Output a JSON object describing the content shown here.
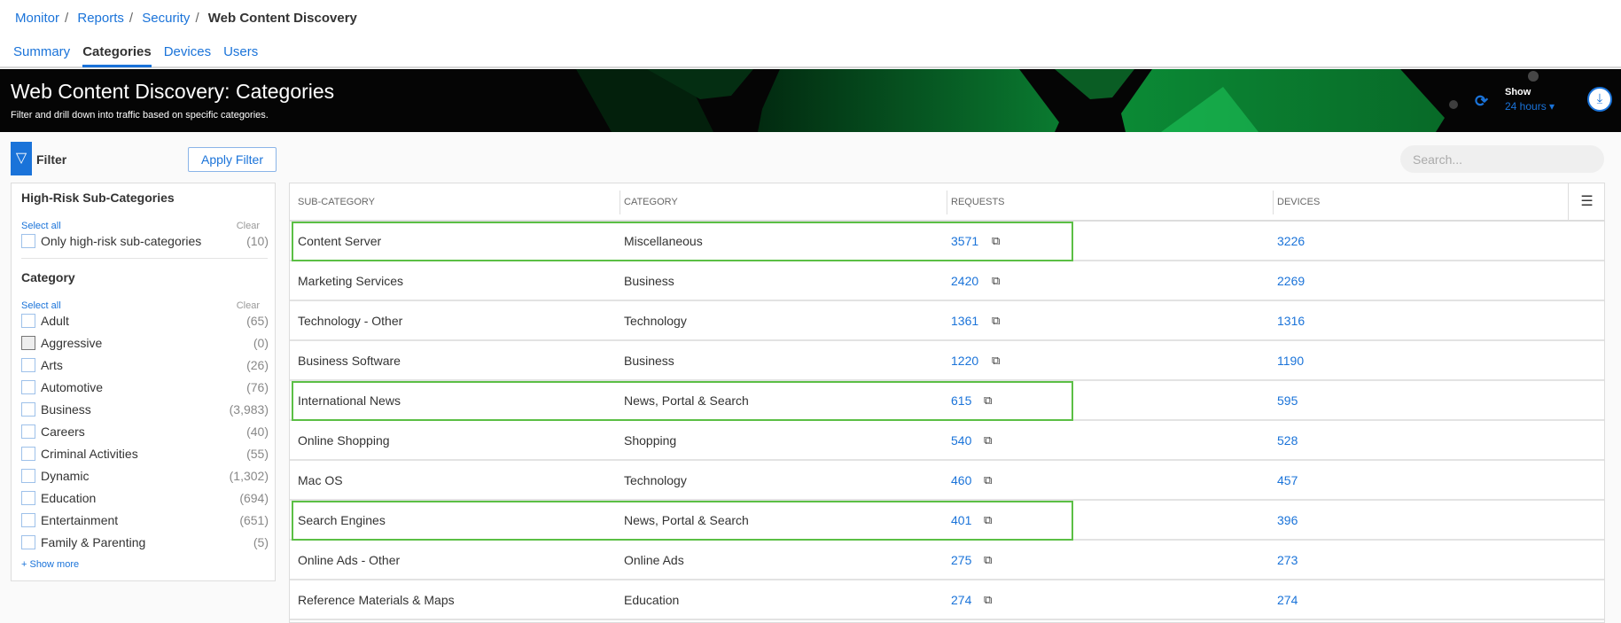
{
  "breadcrumb": {
    "items": [
      "Monitor",
      "Reports",
      "Security"
    ],
    "current": "Web Content Discovery"
  },
  "tabs": [
    "Summary",
    "Categories",
    "Devices",
    "Users"
  ],
  "active_tab": "Categories",
  "banner": {
    "title": "Web Content Discovery: Categories",
    "subtitle": "Filter and drill down into traffic based on specific categories.",
    "show_label": "Show",
    "time_range": "24 hours",
    "refresh_icon": "refresh-icon",
    "download_icon": "download-icon"
  },
  "filter": {
    "label": "Filter",
    "apply": "Apply Filter",
    "icon": "filter-icon"
  },
  "search": {
    "placeholder": "Search...",
    "value": ""
  },
  "panel": {
    "high_risk": {
      "title": "High-Risk Sub-Categories",
      "select_all": "Select all",
      "clear": "Clear",
      "options": [
        {
          "label": "Only high-risk sub-categories",
          "count": "(10)"
        }
      ]
    },
    "category": {
      "title": "Category",
      "select_all": "Select all",
      "clear": "Clear",
      "options": [
        {
          "label": "Adult",
          "count": "(65)"
        },
        {
          "label": "Aggressive",
          "count": "(0)"
        },
        {
          "label": "Arts",
          "count": "(26)"
        },
        {
          "label": "Automotive",
          "count": "(76)"
        },
        {
          "label": "Business",
          "count": "(3,983)"
        },
        {
          "label": "Careers",
          "count": "(40)"
        },
        {
          "label": "Criminal Activities",
          "count": "(55)"
        },
        {
          "label": "Dynamic",
          "count": "(1,302)"
        },
        {
          "label": "Education",
          "count": "(694)"
        },
        {
          "label": "Entertainment",
          "count": "(651)"
        },
        {
          "label": "Family & Parenting",
          "count": "(5)"
        }
      ]
    },
    "show_more": "+ Show more"
  },
  "table": {
    "columns": [
      "SUB-CATEGORY",
      "CATEGORY",
      "REQUESTS",
      "DEVICES"
    ],
    "rows": [
      {
        "sub": "Content Server",
        "cat": "Miscellaneous",
        "req": "3571",
        "dev": "3226",
        "highlight": true
      },
      {
        "sub": "Marketing Services",
        "cat": "Business",
        "req": "2420",
        "dev": "2269"
      },
      {
        "sub": "Technology - Other",
        "cat": "Technology",
        "req": "1361",
        "dev": "1316"
      },
      {
        "sub": "Business Software",
        "cat": "Business",
        "req": "1220",
        "dev": "1190"
      },
      {
        "sub": "International News",
        "cat": "News, Portal & Search",
        "req": "615",
        "dev": "595",
        "highlight": true
      },
      {
        "sub": "Online Shopping",
        "cat": "Shopping",
        "req": "540",
        "dev": "528"
      },
      {
        "sub": "Mac OS",
        "cat": "Technology",
        "req": "460",
        "dev": "457"
      },
      {
        "sub": "Search Engines",
        "cat": "News, Portal & Search",
        "req": "401",
        "dev": "396",
        "highlight": true
      },
      {
        "sub": "Online Ads - Other",
        "cat": "Online Ads",
        "req": "275",
        "dev": "273"
      },
      {
        "sub": "Reference Materials & Maps",
        "cat": "Education",
        "req": "274",
        "dev": "274"
      }
    ]
  },
  "colors": {
    "accent": "#1a73d9",
    "highlight": "#5bbf45",
    "banner": "#050505"
  }
}
